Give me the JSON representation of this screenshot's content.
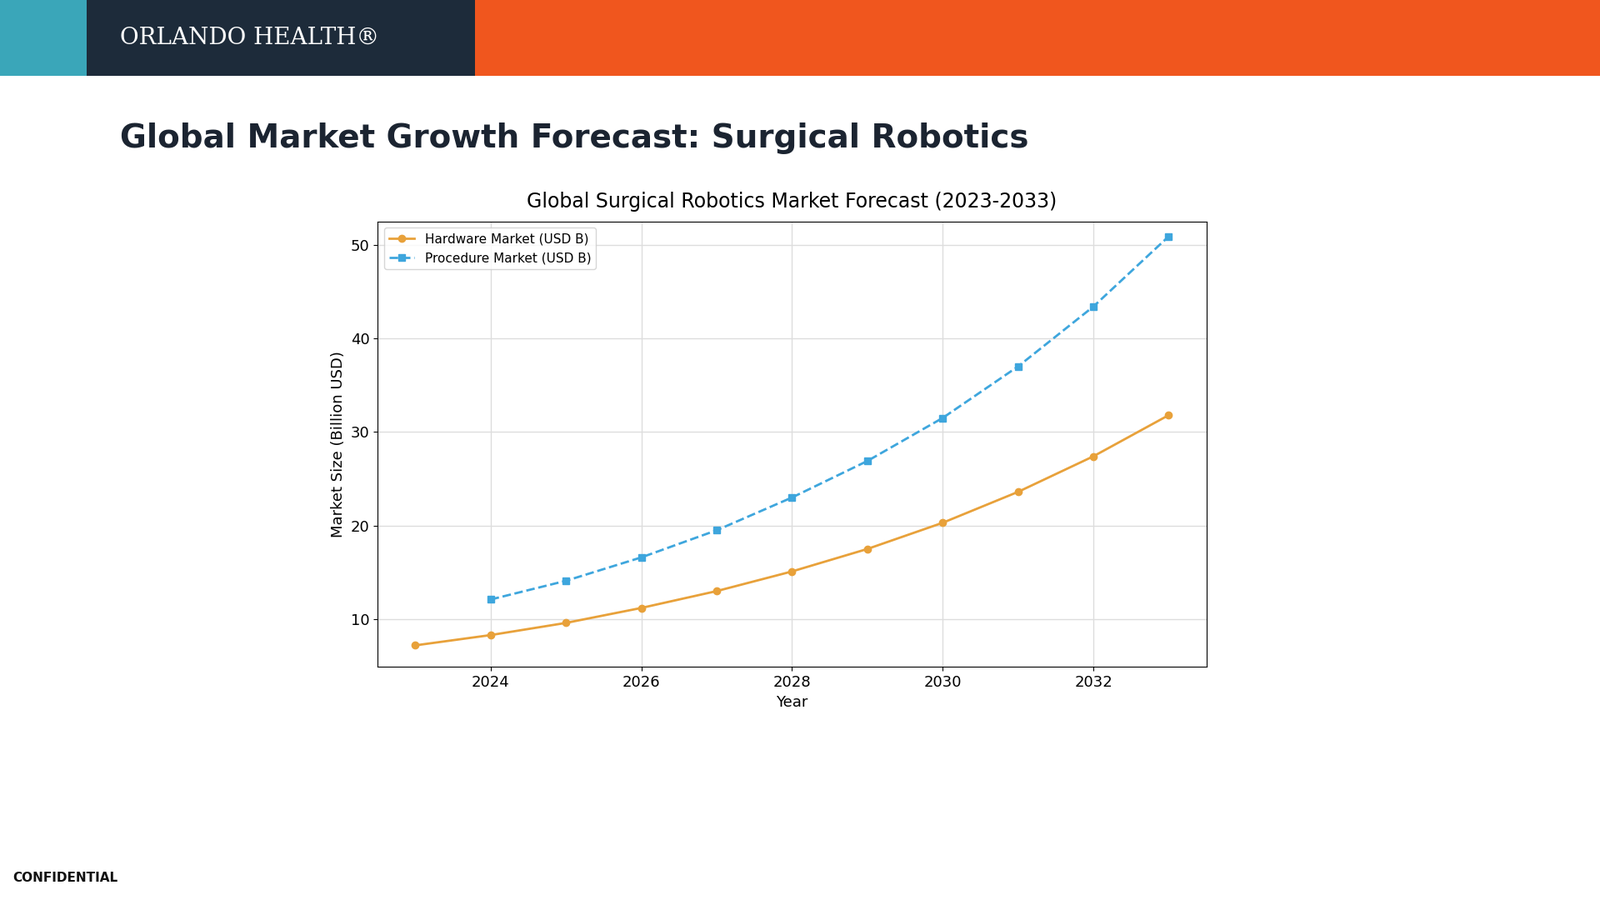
{
  "slide": {
    "logo": "ORLANDO HEALTH®",
    "heading": "Global Market Growth Forecast: Surgical Robotics",
    "footer": "CONFIDENTIAL"
  },
  "chart_data": {
    "type": "line",
    "title": "Global Surgical Robotics Market Forecast (2023-2033)",
    "x_label": "Year",
    "y_label": "Market Size (Billion USD)",
    "x": [
      2023,
      2024,
      2025,
      2026,
      2027,
      2028,
      2029,
      2030,
      2031,
      2032,
      2033
    ],
    "series": [
      {
        "name": "Hardware Market (USD B)",
        "color": "#e8a13a",
        "marker": "circle",
        "line_style": "solid",
        "values": [
          7.2,
          8.3,
          9.6,
          11.2,
          13.0,
          15.1,
          17.5,
          20.3,
          23.6,
          27.4,
          31.8
        ]
      },
      {
        "name": "Procedure Market (USD B)",
        "color": "#3ea6dd",
        "marker": "square",
        "line_style": "dashed",
        "values": [
          null,
          12.1,
          14.1,
          16.6,
          19.5,
          23.0,
          26.9,
          31.5,
          37.0,
          43.4,
          50.9
        ]
      }
    ],
    "xlim": [
      2022.5,
      2033.5
    ],
    "ylim": [
      4.9,
      52.5
    ],
    "xticks": [
      2024,
      2026,
      2028,
      2030,
      2032
    ],
    "yticks": [
      10,
      20,
      30,
      40,
      50
    ],
    "grid": true,
    "legend": "upper left"
  }
}
